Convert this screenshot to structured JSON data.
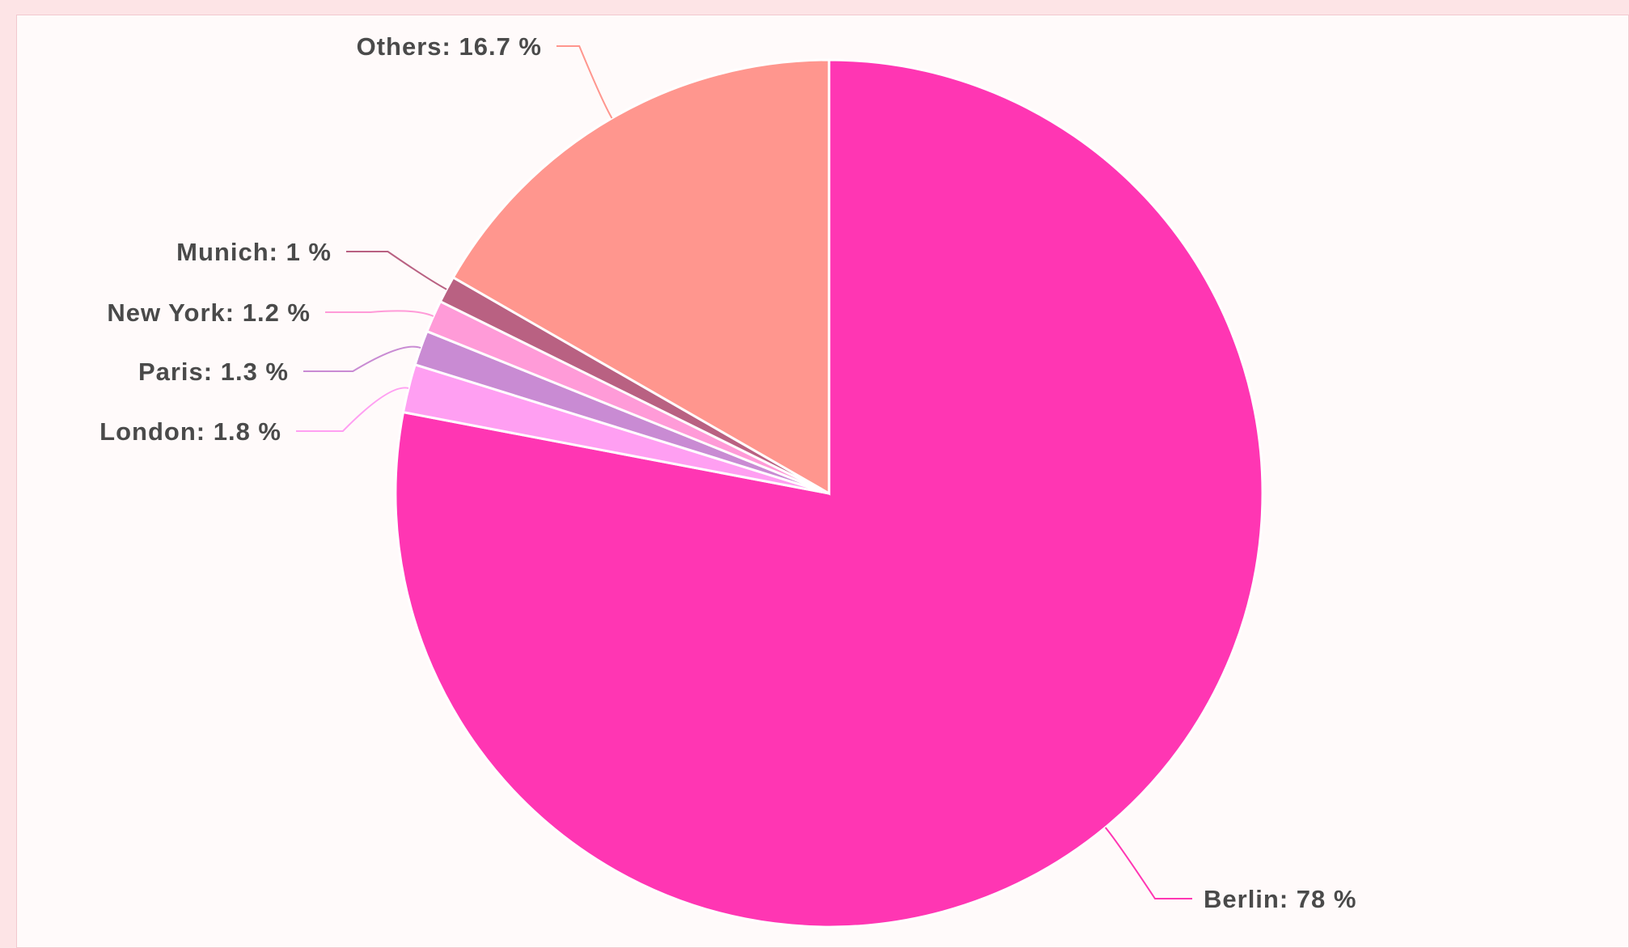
{
  "chart_data": {
    "type": "pie",
    "title": "",
    "slices": [
      {
        "name": "Berlin",
        "value": 78,
        "label": "Berlin: 78 %",
        "color": "#ff36b3"
      },
      {
        "name": "London",
        "value": 1.8,
        "label": "London: 1.8 %",
        "color": "#ff9ff2"
      },
      {
        "name": "Paris",
        "value": 1.3,
        "label": "Paris: 1.3 %",
        "color": "#c98bd3"
      },
      {
        "name": "New York",
        "value": 1.2,
        "label": "New York: 1.2 %",
        "color": "#ff9bd8"
      },
      {
        "name": "Munich",
        "value": 1,
        "label": "Munich: 1 %",
        "color": "#b96182"
      },
      {
        "name": "Others",
        "value": 16.7,
        "label": "Others: 16.7 %",
        "color": "#ff968e"
      }
    ],
    "start_angle": "12 o'clock",
    "direction": "clockwise",
    "legend": "none"
  }
}
